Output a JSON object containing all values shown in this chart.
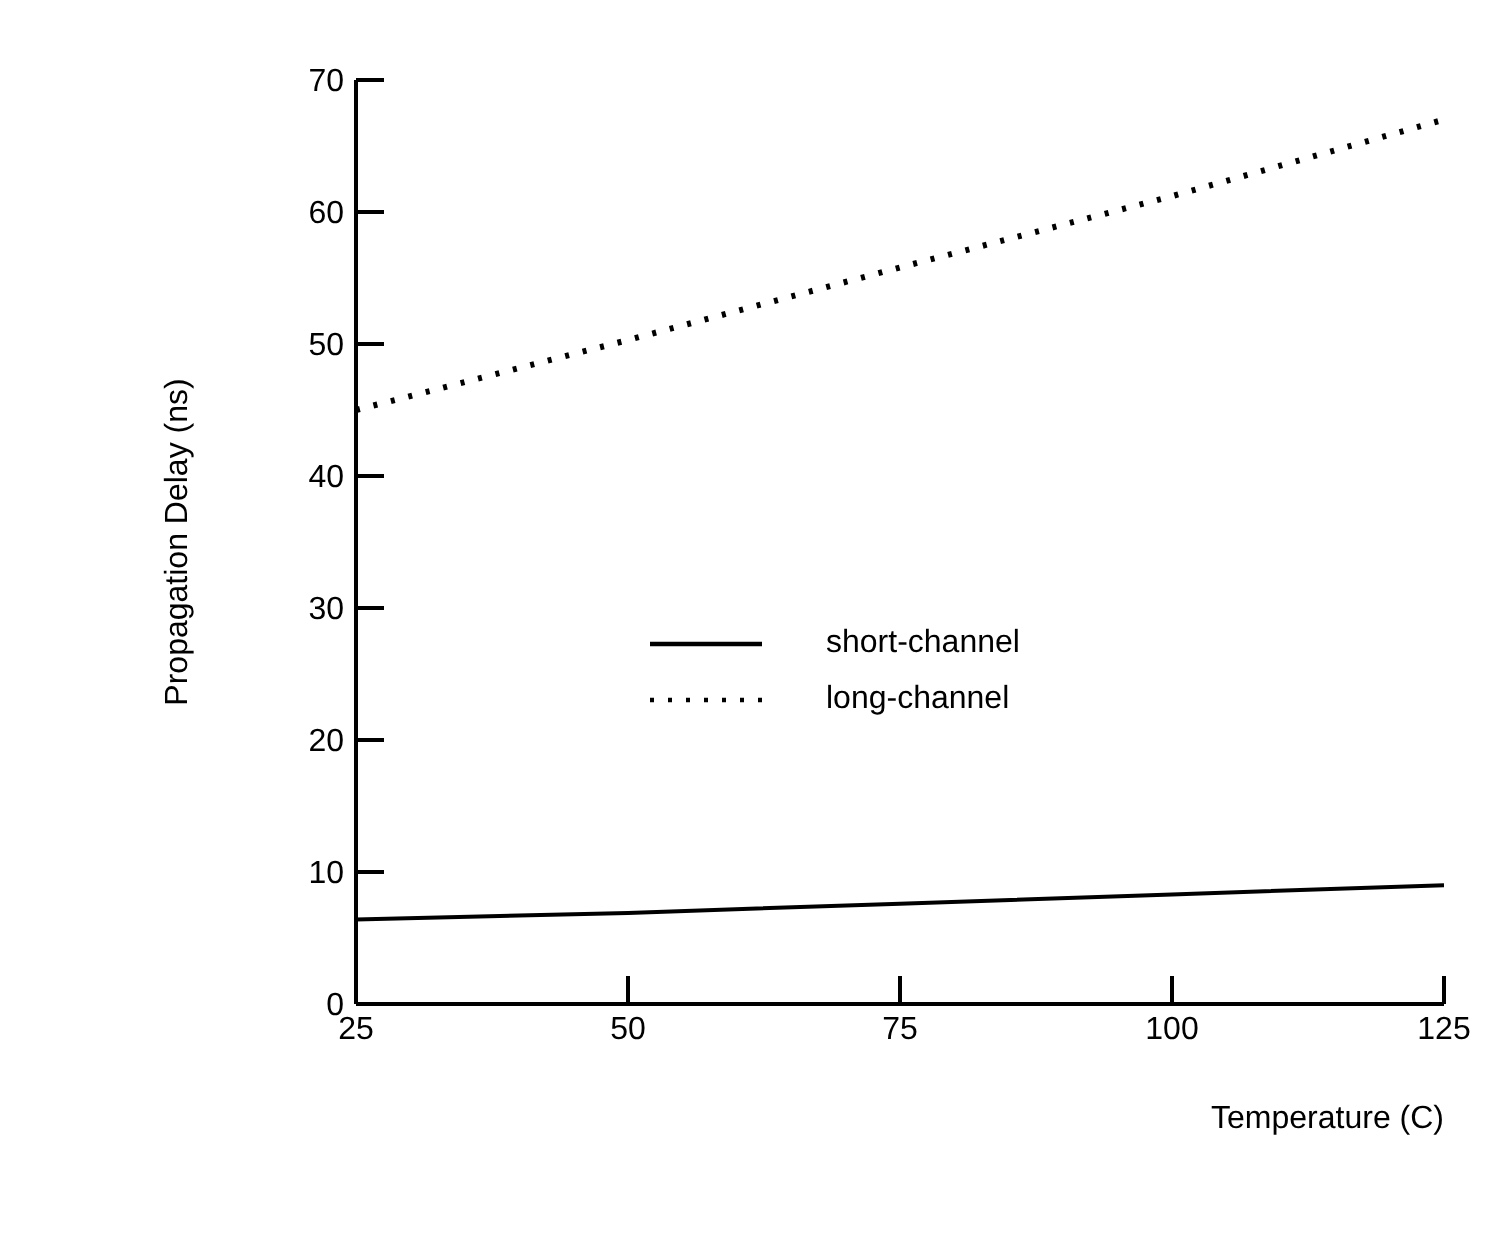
{
  "chart_data": {
    "type": "line",
    "xlabel": "Temperature (C)",
    "ylabel": "Propagation Delay (ns)",
    "x": [
      25,
      50,
      75,
      100,
      125
    ],
    "series": [
      {
        "name": "short-channel",
        "color": "#000000",
        "line_style": "solid",
        "values": [
          6.4,
          6.9,
          7.6,
          8.3,
          9.0
        ]
      },
      {
        "name": "long-channel",
        "color": "#000000",
        "line_style": "dotted",
        "values": [
          45,
          50.3,
          55.8,
          61.2,
          67
        ]
      }
    ],
    "xlim": [
      25,
      125
    ],
    "xticks": [
      25,
      50,
      75,
      100,
      125
    ],
    "ylim": [
      0,
      70
    ],
    "yticks": [
      0,
      10,
      20,
      30,
      40,
      50,
      60,
      70
    ],
    "grid": false,
    "legend": "center",
    "marker": "none"
  }
}
